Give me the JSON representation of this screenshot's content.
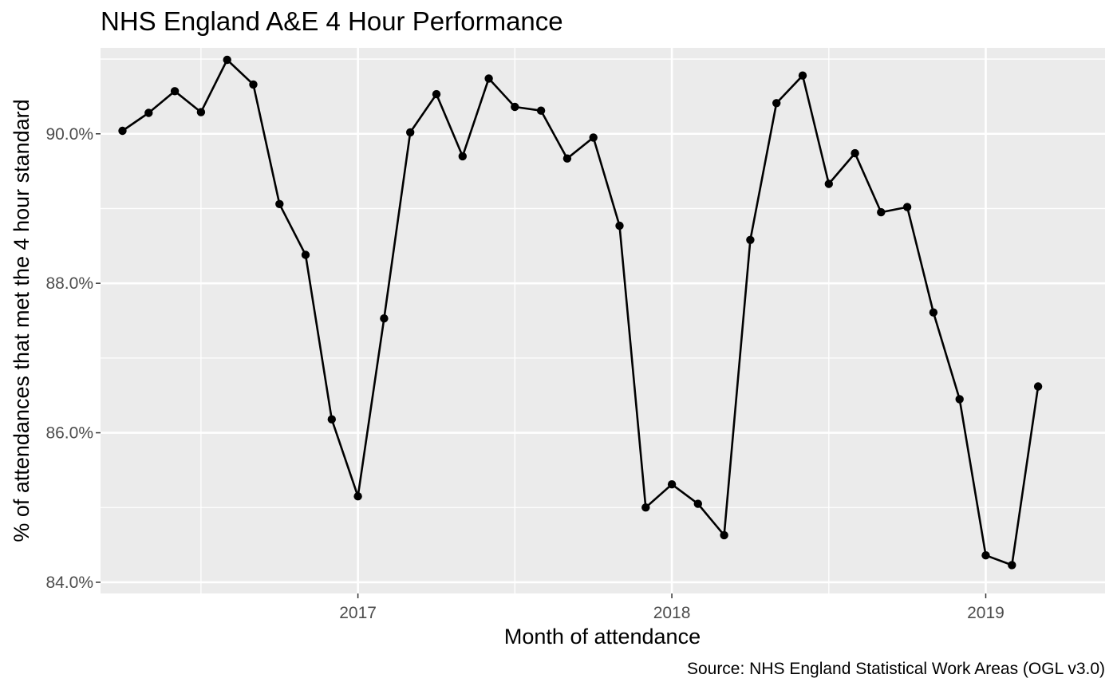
{
  "chart_data": {
    "type": "line",
    "title": "NHS England A&E 4 Hour Performance",
    "xlabel": "Month of attendance",
    "ylabel": "% of attendances that met the 4 hour standard",
    "caption": "Source: NHS England Statistical Work Areas (OGL v3.0)",
    "x_ticks": [
      "2017",
      "2018",
      "2019"
    ],
    "y_ticks": [
      "84.0%",
      "86.0%",
      "88.0%",
      "90.0%"
    ],
    "ylim": [
      83.85,
      91.15
    ],
    "grid": true,
    "markers": true,
    "colors": {
      "panel": "#ebebeb",
      "grid": "#ffffff",
      "line": "#000000",
      "tick_text": "#4d4d4d"
    },
    "series": [
      {
        "x": [
          "2016-04",
          "2016-05",
          "2016-06",
          "2016-07",
          "2016-08",
          "2016-09",
          "2016-10",
          "2016-11",
          "2016-12",
          "2017-01",
          "2017-02",
          "2017-03",
          "2017-04",
          "2017-05",
          "2017-06",
          "2017-07",
          "2017-08",
          "2017-09",
          "2017-10",
          "2017-11",
          "2017-12",
          "2018-01",
          "2018-02",
          "2018-03",
          "2018-04",
          "2018-05",
          "2018-06",
          "2018-07",
          "2018-08",
          "2018-09",
          "2018-10",
          "2018-11",
          "2018-12",
          "2019-01",
          "2019-02",
          "2019-03"
        ],
        "values": [
          90.04,
          90.28,
          90.57,
          90.29,
          90.99,
          90.66,
          89.06,
          88.38,
          86.18,
          85.15,
          87.53,
          90.02,
          90.53,
          89.7,
          90.74,
          90.36,
          90.31,
          89.67,
          89.95,
          88.77,
          85.0,
          85.31,
          85.05,
          84.63,
          88.58,
          90.41,
          90.78,
          89.33,
          89.74,
          88.95,
          89.02,
          87.61,
          86.45,
          84.36,
          84.23,
          86.62
        ]
      }
    ]
  }
}
